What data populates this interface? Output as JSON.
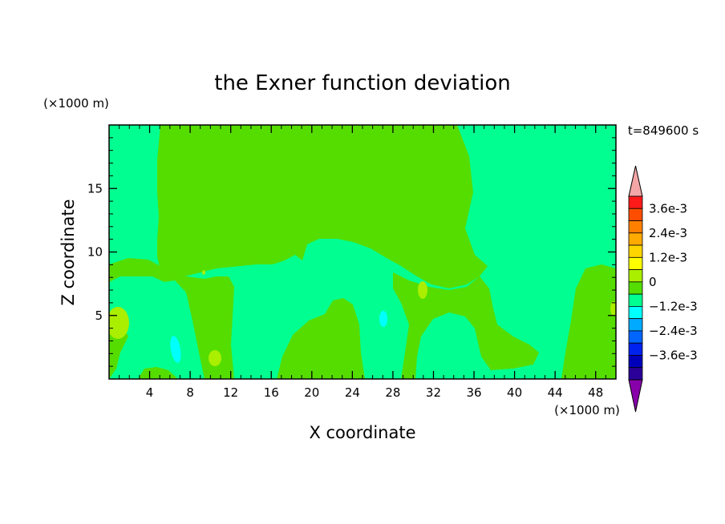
{
  "chart_data": {
    "type": "heatmap",
    "title": "the Exner function deviation",
    "xlabel": "X coordinate",
    "ylabel": "Z coordinate",
    "x_unit": "(×1000 m)",
    "y_unit": "(×1000 m)",
    "time_label": "t=849600 s",
    "xlim": [
      0,
      50
    ],
    "ylim": [
      0,
      20
    ],
    "x_ticks": [
      4,
      8,
      12,
      16,
      20,
      24,
      28,
      32,
      36,
      40,
      44,
      48
    ],
    "y_ticks": [
      5,
      10,
      15
    ],
    "colorbar": {
      "levels": [
        {
          "upper": "over",
          "color": "#f4a6a6"
        },
        {
          "upper": 0.0042,
          "color": "#ff1a1a"
        },
        {
          "upper": 0.0036,
          "color": "#ff4d00"
        },
        {
          "upper": 0.003,
          "color": "#ff8000"
        },
        {
          "upper": 0.0024,
          "color": "#ffaa00"
        },
        {
          "upper": 0.0018,
          "color": "#ffd500"
        },
        {
          "upper": 0.0012,
          "color": "#ffff00"
        },
        {
          "upper": 0.0006,
          "color": "#aaee00"
        },
        {
          "upper": 0.0,
          "color": "#55dd00"
        },
        {
          "upper": -0.0006,
          "color": "#00ff90"
        },
        {
          "upper": -0.0012,
          "color": "#00ffff"
        },
        {
          "upper": -0.0018,
          "color": "#00aaff"
        },
        {
          "upper": -0.0024,
          "color": "#0066ff"
        },
        {
          "upper": -0.003,
          "color": "#0022ee"
        },
        {
          "upper": -0.0036,
          "color": "#0000bb"
        },
        {
          "upper": -0.0042,
          "color": "#2a0099"
        },
        {
          "upper": "under",
          "color": "#8800aa"
        }
      ],
      "labels": [
        "3.6e-3",
        "2.4e-3",
        "1.2e-3",
        "0",
        "−1.2e-3",
        "−2.4e-3",
        "−3.6e-3"
      ]
    },
    "background_color": "#00ff90",
    "regions": [
      {
        "level": "0.0006",
        "color": "#55dd00",
        "description": "upper central region"
      },
      {
        "level": "0.0006",
        "color": "#55dd00",
        "description": "lower right region"
      },
      {
        "level": "0.0012",
        "color": "#aaee00",
        "description": "small spots"
      }
    ]
  }
}
